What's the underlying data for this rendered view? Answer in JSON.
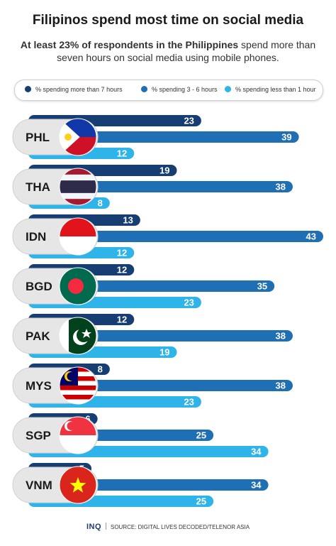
{
  "header": {
    "title": "Filipinos spend most time on social media",
    "subtitle_bold": "At least 23% of respondents in the Philippines",
    "subtitle_rest": " spend more than seven hours on social media using mobile phones."
  },
  "legend": {
    "items": [
      {
        "label": "% spending more than 7 hours",
        "color": "#163e72"
      },
      {
        "label": "% spending 3 - 6 hours",
        "color": "#1f6fb5"
      },
      {
        "label": "% spending less than 1 hour",
        "color": "#2fb4ea"
      }
    ]
  },
  "footer": {
    "logo": "INQ",
    "source": "SOURCE: DIGITAL LIVES DECODED/TELENOR ASIA"
  },
  "chart_data": {
    "type": "bar",
    "orientation": "horizontal",
    "categories": [
      "PHL",
      "THA",
      "IDN",
      "BGD",
      "PAK",
      "MYS",
      "SGP",
      "VNM"
    ],
    "flags": [
      "philippines-flag",
      "thailand-flag",
      "indonesia-flag",
      "bangladesh-flag",
      "pakistan-flag",
      "malaysia-flag",
      "singapore-flag",
      "vietnam-flag"
    ],
    "series": [
      {
        "name": "% spending more than 7 hours",
        "color": "#163e72",
        "values": [
          23,
          19,
          13,
          12,
          12,
          8,
          6,
          5
        ]
      },
      {
        "name": "% spending 3 - 6 hours",
        "color": "#1f6fb5",
        "values": [
          39,
          38,
          43,
          35,
          38,
          38,
          25,
          34
        ]
      },
      {
        "name": "% spending less than 1 hour",
        "color": "#2fb4ea",
        "values": [
          12,
          8,
          12,
          23,
          19,
          23,
          34,
          25
        ]
      }
    ],
    "xlim": [
      0,
      43
    ],
    "data_labels": true,
    "legend_position": "top"
  }
}
